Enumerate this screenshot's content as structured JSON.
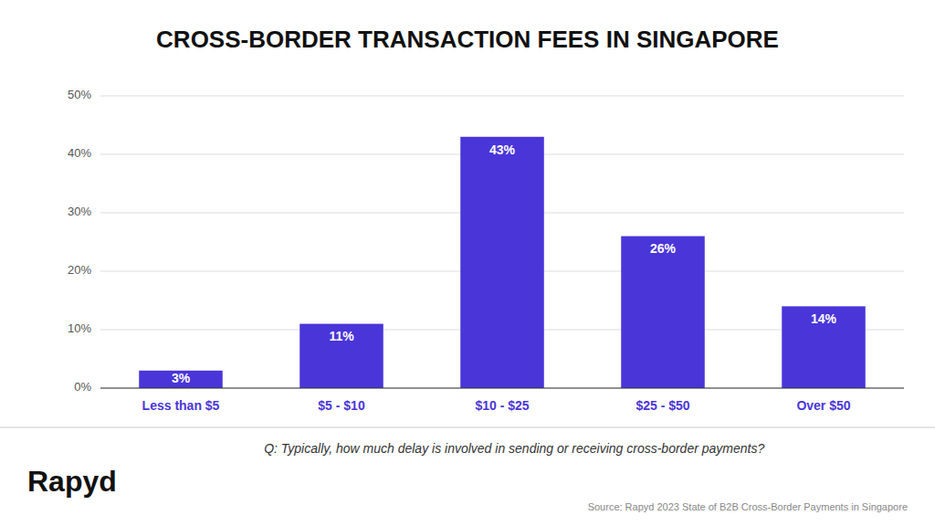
{
  "chart_data": {
    "type": "bar",
    "title": "CROSS-BORDER TRANSACTION FEES IN SINGAPORE",
    "categories": [
      "Less than $5",
      "$5 - $10",
      "$10 - $25",
      "$25 - $50",
      "Over $50"
    ],
    "values": [
      3,
      11,
      43,
      26,
      14
    ],
    "value_labels": [
      "3%",
      "11%",
      "43%",
      "26%",
      "14%"
    ],
    "data_labels": true,
    "color": "#4A35D9",
    "ylim": [
      0,
      50
    ],
    "yticks": [
      {
        "value": 0,
        "label": "0%"
      },
      {
        "value": 10,
        "label": "10%"
      },
      {
        "value": 20,
        "label": "20%"
      },
      {
        "value": 30,
        "label": "30%"
      },
      {
        "value": 40,
        "label": "40%"
      },
      {
        "value": 50,
        "label": "50%"
      }
    ],
    "grid": true,
    "annotations": [
      "Q: Typically, how much delay is involved in sending or receiving cross-border payments?",
      "Source: Rapyd 2023 State of B2B Cross-Border Payments in Singapore",
      "Rapyd"
    ]
  }
}
